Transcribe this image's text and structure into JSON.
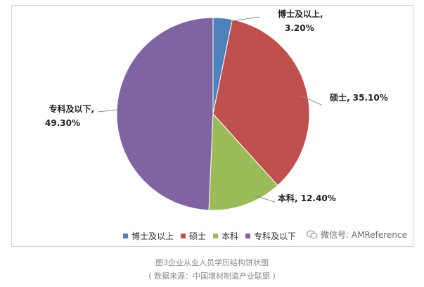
{
  "chart_data": {
    "type": "pie",
    "title": "",
    "slices": [
      {
        "label": "博士及以上",
        "value": 3.2,
        "display": "3.20%",
        "color": "#4f81bd"
      },
      {
        "label": "硕士",
        "value": 35.1,
        "display": "35.10%",
        "color": "#c0504d"
      },
      {
        "label": "本科",
        "value": 12.4,
        "display": "12.40%",
        "color": "#9bbb59"
      },
      {
        "label": "专科及以下",
        "value": 49.3,
        "display": "49.30%",
        "color": "#8064a2"
      }
    ],
    "legend_position": "bottom"
  },
  "legend": {
    "items": [
      "博士及以上",
      "硕士",
      "本科",
      "专科及以下"
    ]
  },
  "watermark": {
    "text": "微信号: AMReference",
    "icon": "wechat-icon"
  },
  "caption": {
    "line1": "图3企业从业人员学历结构饼状图",
    "line2": "( 数据来源：中国增材制造产业联盟 )"
  }
}
